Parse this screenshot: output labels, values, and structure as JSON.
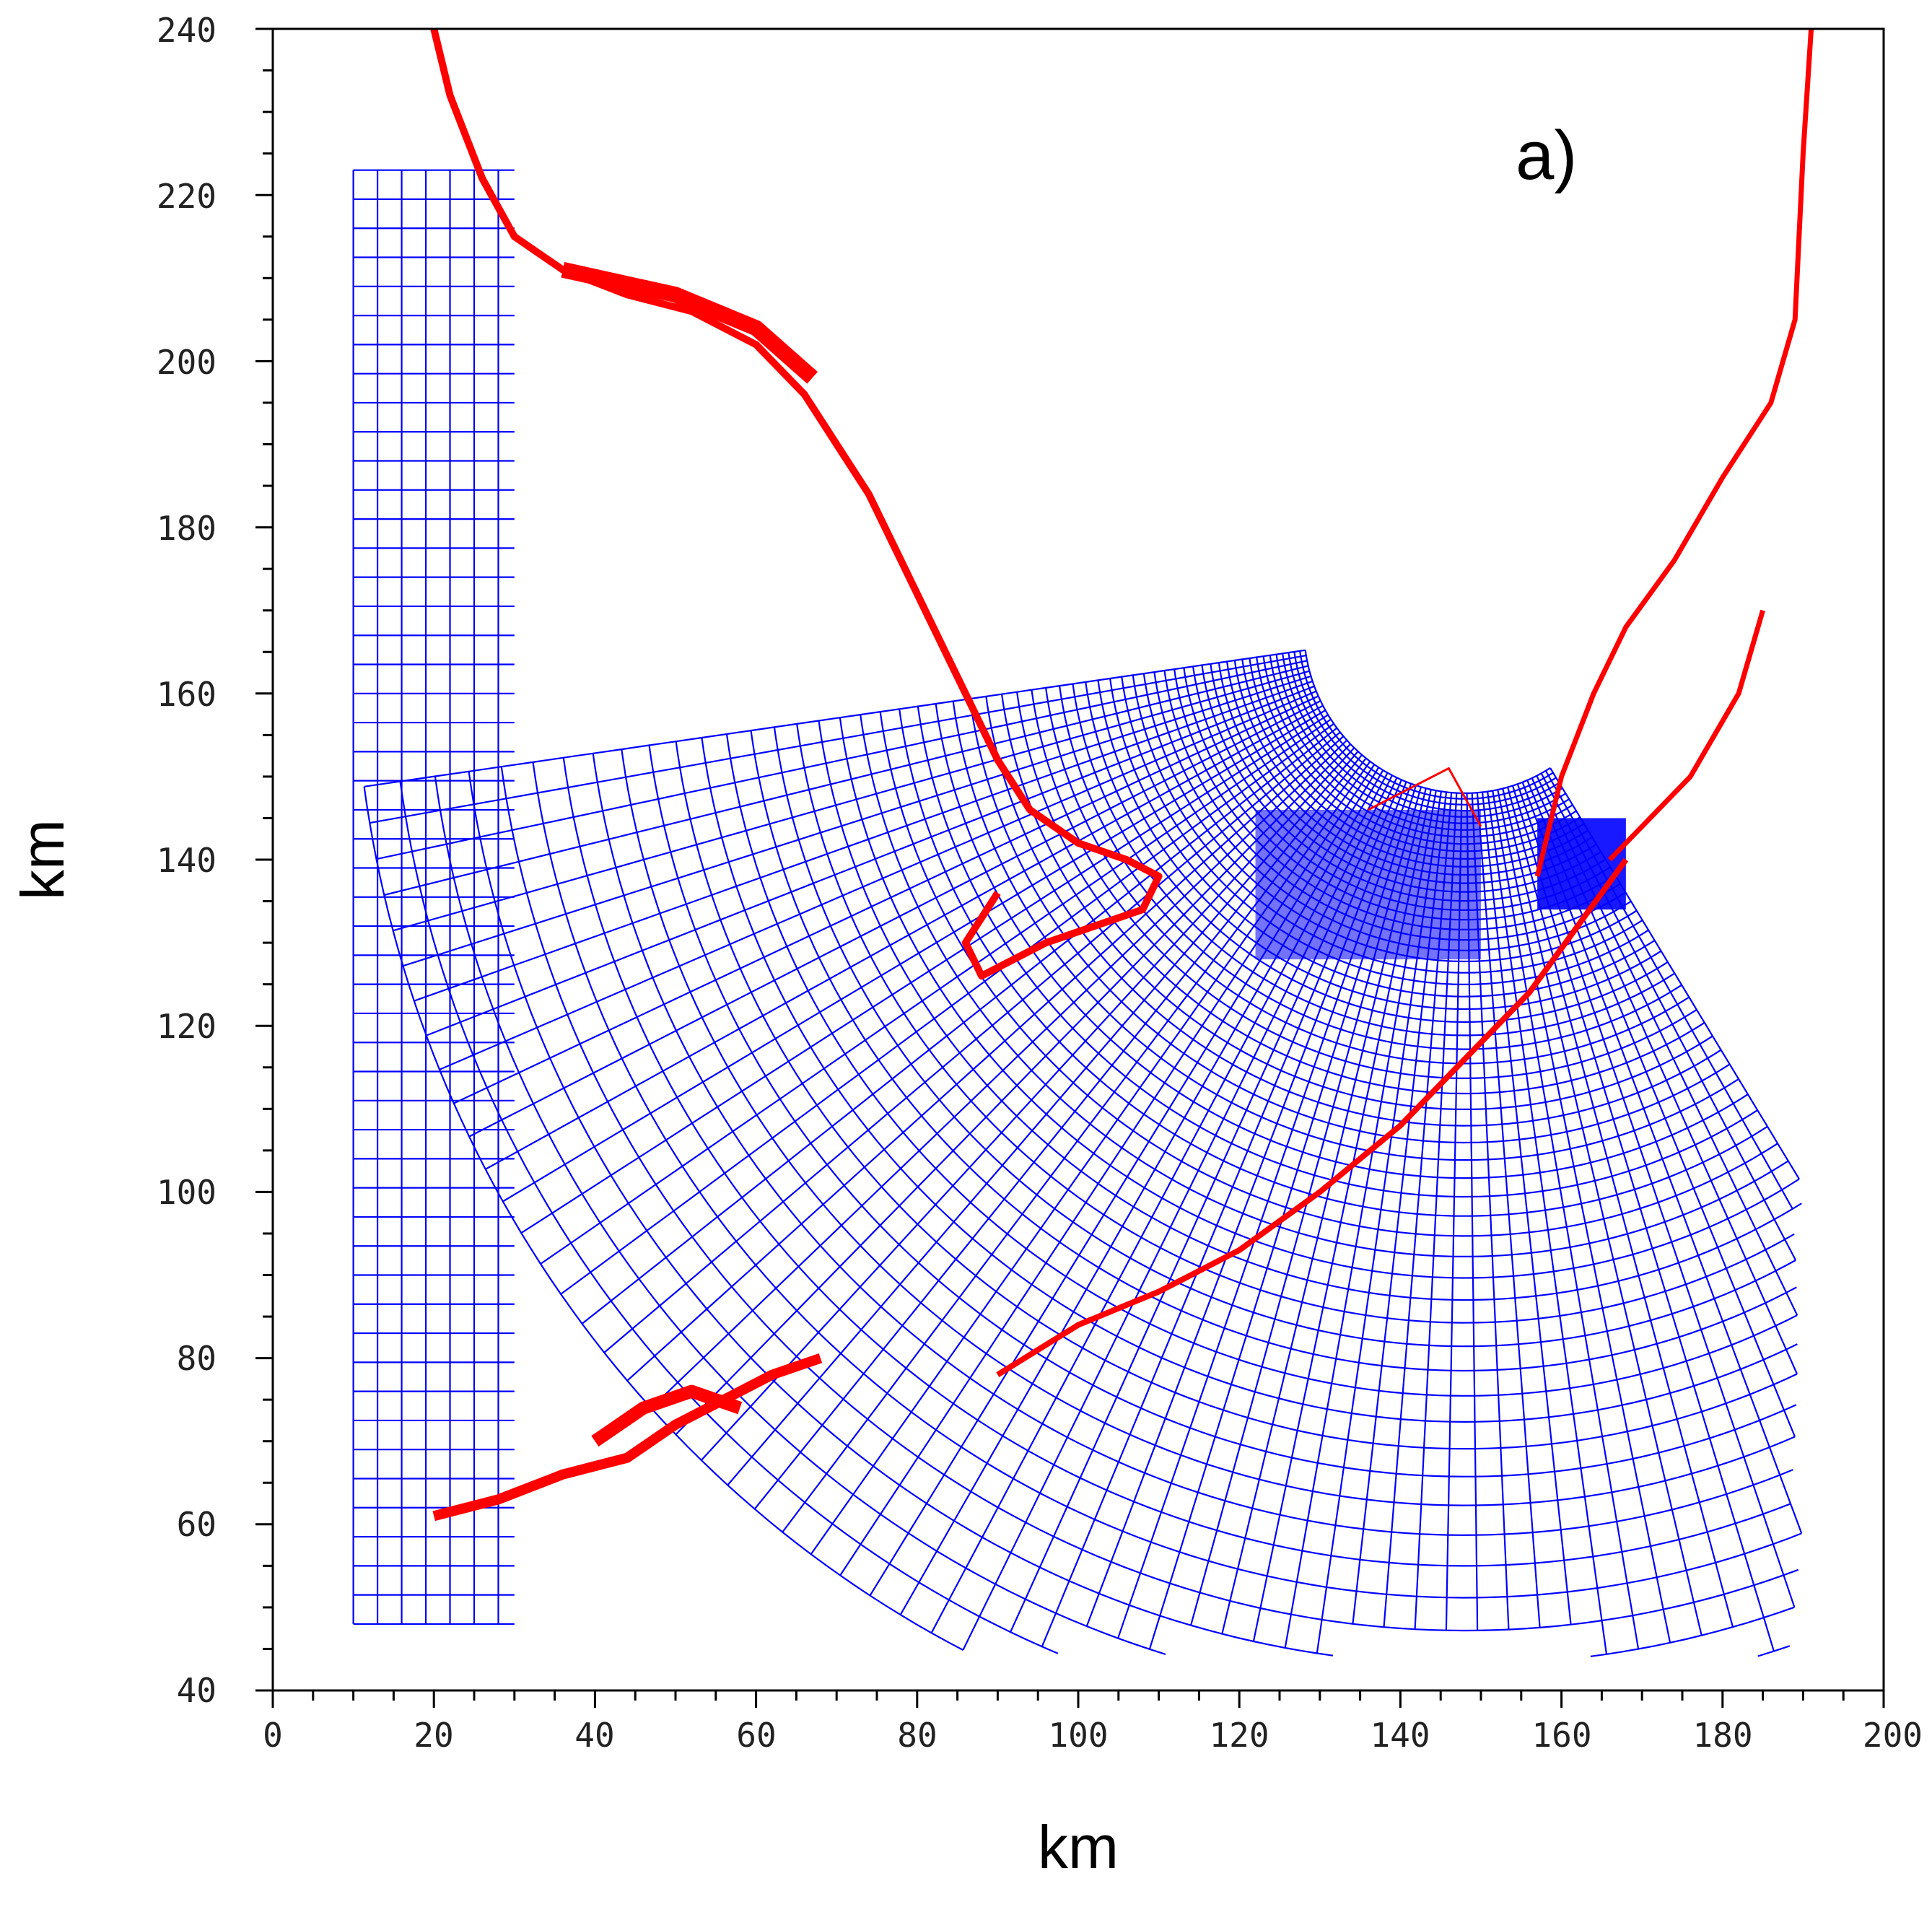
{
  "panel_label": "a)",
  "x_axis": {
    "title": "km",
    "range": [
      0,
      200
    ],
    "ticks": [
      "0",
      "20",
      "40",
      "60",
      "80",
      "100",
      "120",
      "140",
      "160",
      "180",
      "200"
    ]
  },
  "y_axis": {
    "title": "km",
    "range": [
      40,
      240
    ],
    "ticks": [
      "40",
      "60",
      "80",
      "100",
      "120",
      "140",
      "160",
      "180",
      "200",
      "220",
      "240"
    ]
  },
  "colors": {
    "grid_mesh": "#0000ff",
    "coastline": "#ff0000",
    "frame": "#000000"
  }
}
